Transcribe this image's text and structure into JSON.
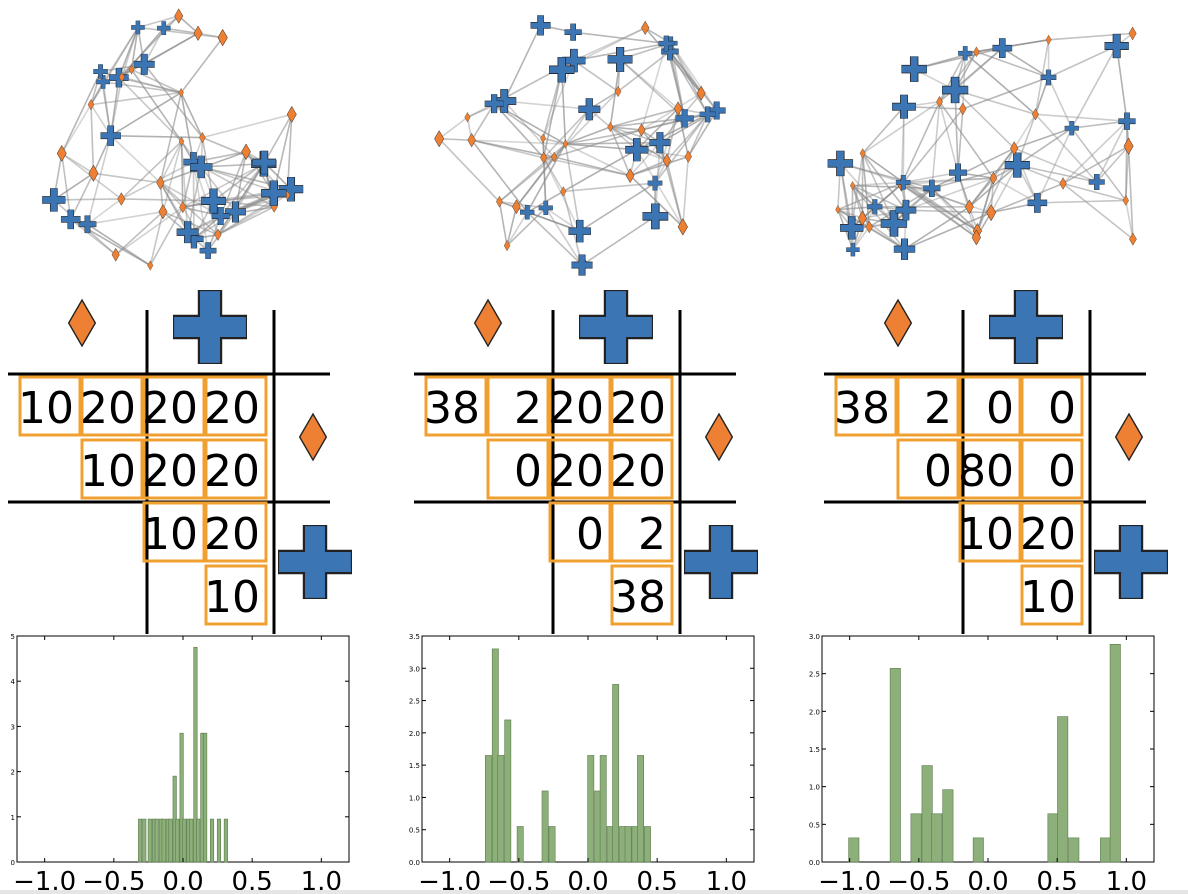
{
  "colors": {
    "diamond": "#ee8033",
    "cross": "#3b75b4",
    "cell_border": "#f0a030",
    "edge": "#888888",
    "bar": "#8db07a",
    "bar_edge": "#5b7a4b"
  },
  "icons": {
    "group_a": "orange-diamond-icon",
    "group_b": "blue-cross-icon"
  },
  "panels": [
    {
      "matrix": [
        [
          "10",
          "20",
          "20",
          "20"
        ],
        [
          "",
          "10",
          "20",
          "20"
        ],
        [
          "",
          "",
          "10",
          "20"
        ],
        [
          "",
          "",
          "",
          "10"
        ]
      ]
    },
    {
      "matrix": [
        [
          "38",
          "2",
          "20",
          "20"
        ],
        [
          "",
          "0",
          "20",
          "20"
        ],
        [
          "",
          "",
          "0",
          "2"
        ],
        [
          "",
          "",
          "",
          "38"
        ]
      ]
    },
    {
      "matrix": [
        [
          "38",
          "2",
          "0",
          "0"
        ],
        [
          "",
          "0",
          "80",
          "0"
        ],
        [
          "",
          "",
          "10",
          "20"
        ],
        [
          "",
          "",
          "",
          "10"
        ]
      ]
    }
  ],
  "chart_data": [
    {
      "type": "bar",
      "xlim": [
        -1.2,
        1.2
      ],
      "ylim": [
        0,
        5
      ],
      "xticks": [
        "−1.0",
        "−0.5",
        "0.0",
        "0.5",
        "1.0"
      ],
      "yticks": [
        "0",
        "1",
        "2",
        "3",
        "4",
        "5"
      ],
      "bin_width": 0.025,
      "x": [
        -0.31,
        -0.28,
        -0.24,
        -0.21,
        -0.19,
        -0.16,
        -0.14,
        -0.11,
        -0.09,
        -0.06,
        -0.04,
        -0.01,
        0.01,
        0.04,
        0.06,
        0.09,
        0.11,
        0.14,
        0.16,
        0.21,
        0.26,
        0.31
      ],
      "values": [
        0.95,
        0.95,
        0.95,
        0.95,
        0.95,
        0.95,
        0.95,
        0.95,
        0.95,
        1.9,
        0.95,
        2.85,
        0.95,
        0.95,
        0.95,
        4.75,
        0.95,
        2.85,
        2.85,
        0.95,
        0.95,
        0.95
      ]
    },
    {
      "type": "bar",
      "xlim": [
        -1.2,
        1.2
      ],
      "ylim": [
        0,
        3.5
      ],
      "xticks": [
        "−1.0",
        "−0.5",
        "0.0",
        "0.5",
        "1.0"
      ],
      "yticks": [
        "0.0",
        "0.5",
        "1.0",
        "1.5",
        "2.0",
        "2.5",
        "3.0",
        "3.5"
      ],
      "bin_width": 0.045,
      "x": [
        -0.72,
        -0.67,
        -0.63,
        -0.58,
        -0.49,
        -0.31,
        -0.26,
        0.02,
        0.07,
        0.11,
        0.16,
        0.2,
        0.25,
        0.29,
        0.34,
        0.38,
        0.43
      ],
      "values": [
        1.65,
        3.3,
        1.65,
        2.2,
        0.55,
        1.1,
        0.55,
        1.65,
        1.1,
        1.65,
        0.55,
        2.75,
        0.55,
        0.55,
        0.55,
        1.65,
        0.55
      ]
    },
    {
      "type": "bar",
      "xlim": [
        -1.2,
        1.2
      ],
      "ylim": [
        0,
        3.0
      ],
      "xticks": [
        "−1.0",
        "−0.5",
        "0.0",
        "0.5",
        "1.0"
      ],
      "yticks": [
        "0.0",
        "0.5",
        "1.0",
        "1.5",
        "2.0",
        "2.5",
        "3.0"
      ],
      "bin_width": 0.075,
      "x": [
        -0.97,
        -0.67,
        -0.52,
        -0.44,
        -0.37,
        -0.29,
        -0.07,
        0.47,
        0.54,
        0.62,
        0.85,
        0.92
      ],
      "values": [
        0.32,
        2.57,
        0.64,
        1.28,
        0.64,
        0.96,
        0.32,
        0.64,
        1.93,
        0.32,
        0.32,
        2.89
      ]
    }
  ]
}
